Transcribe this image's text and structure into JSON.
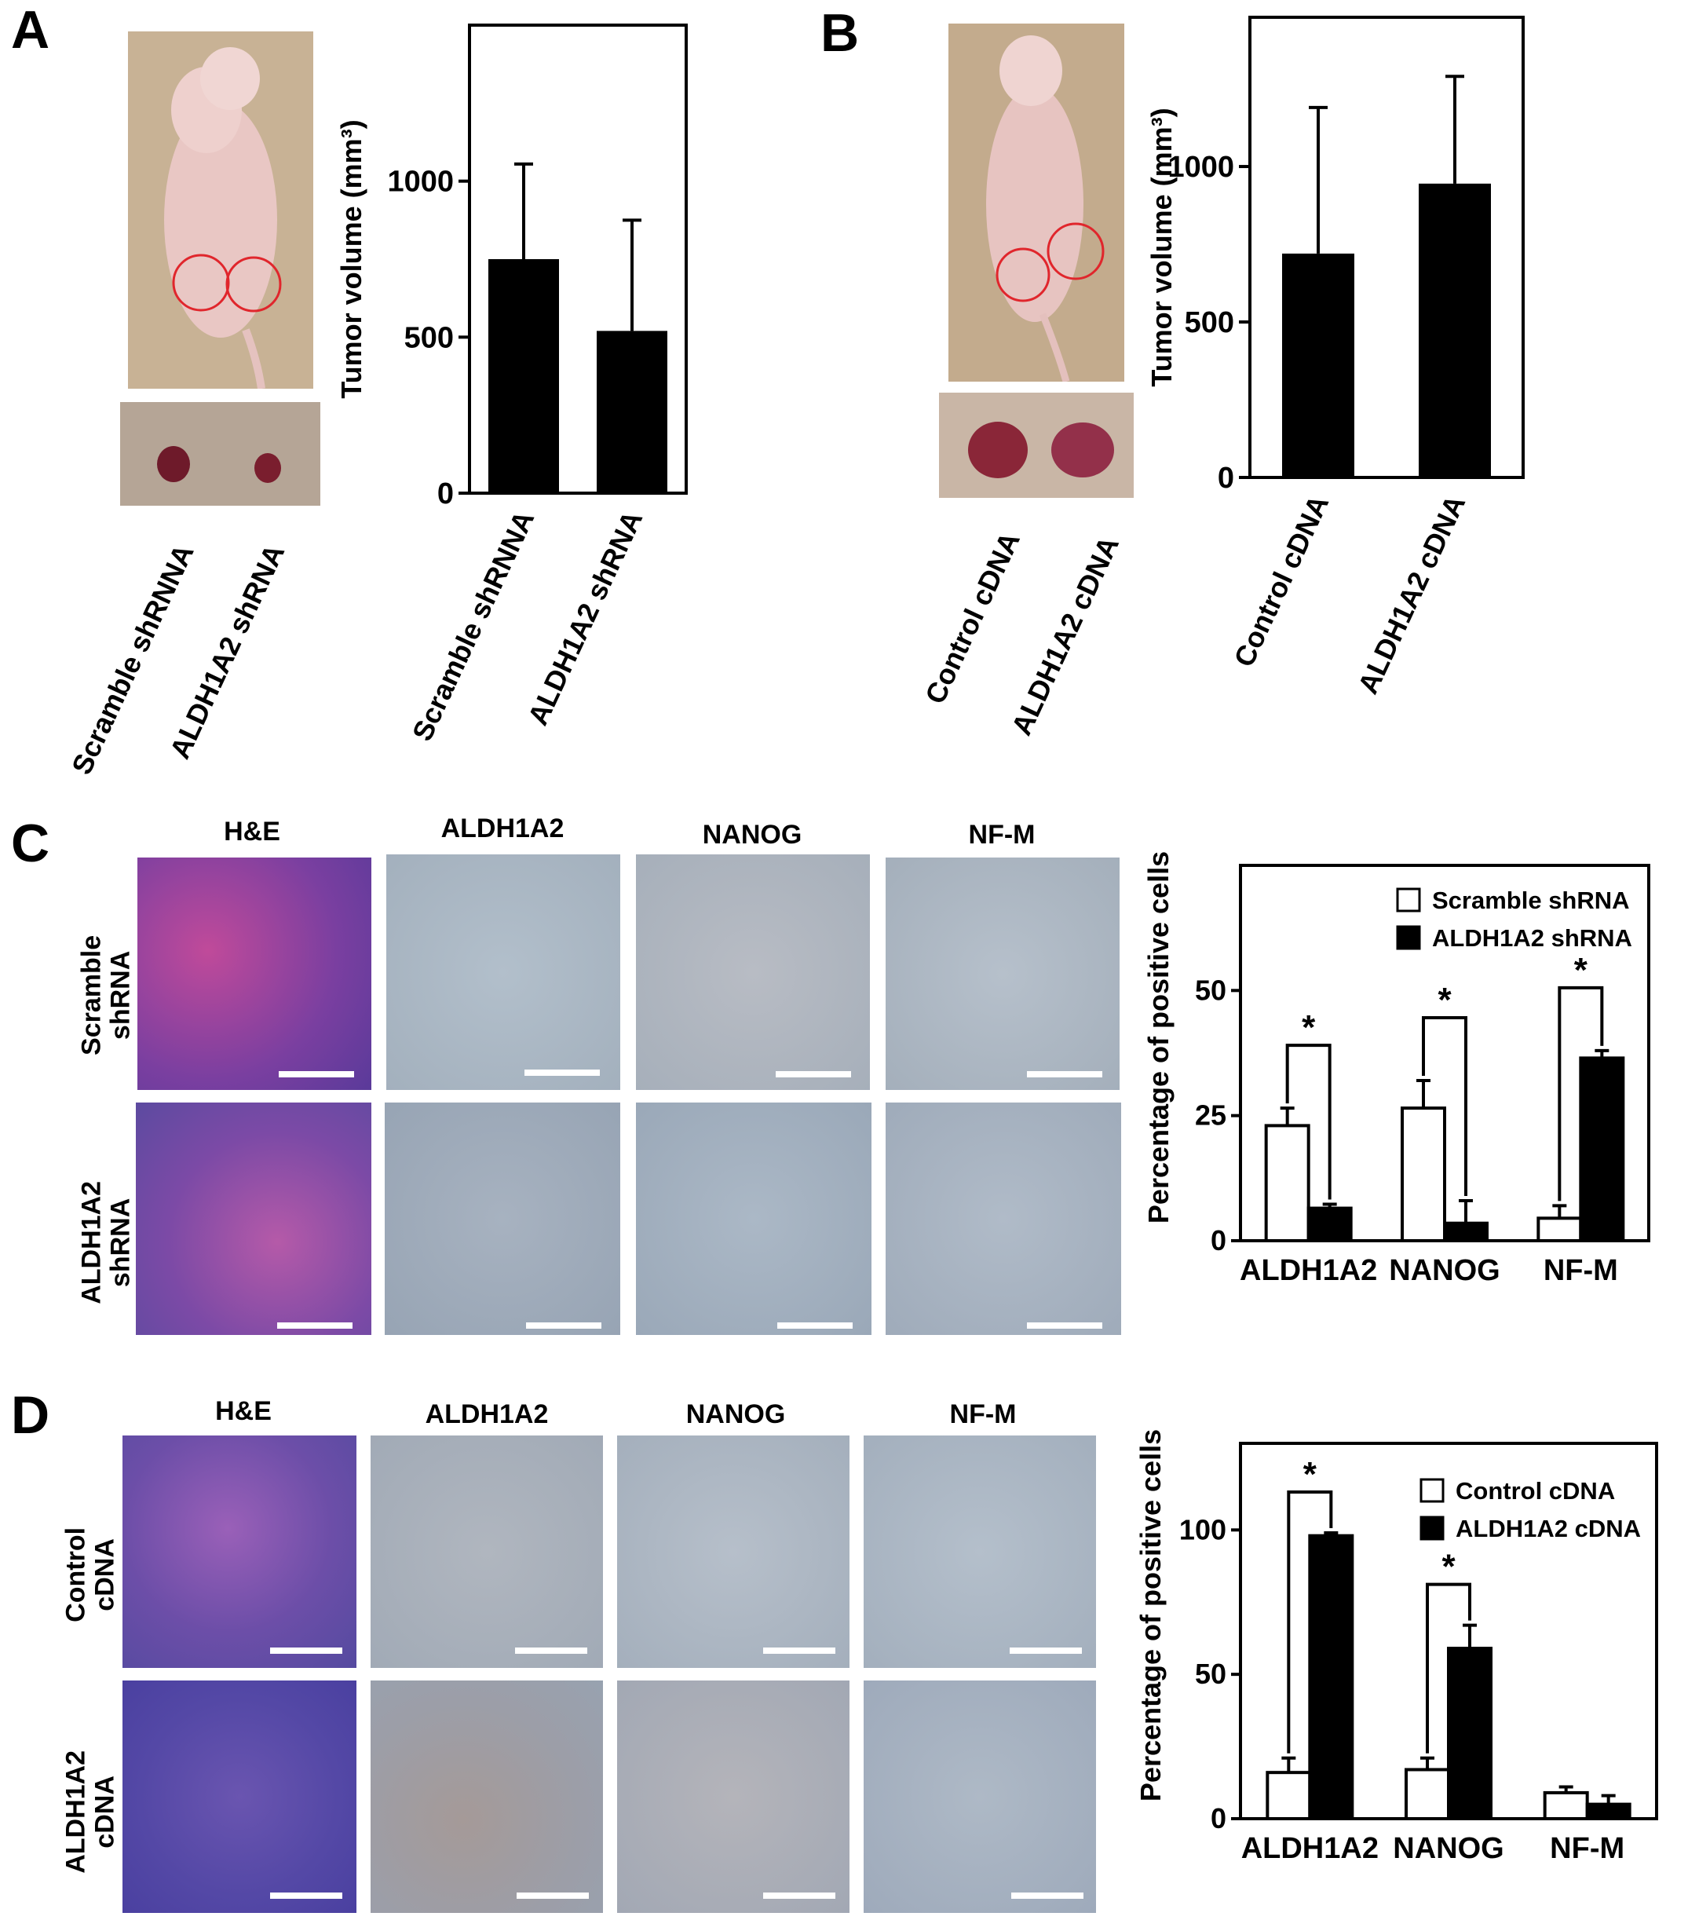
{
  "panels": {
    "A": {
      "letter": "A",
      "photo_labels": [
        "Scramble shRNNA",
        "ALDH1A2 shRNA"
      ]
    },
    "B": {
      "letter": "B",
      "photo_labels": [
        "Control cDNA",
        "ALDH1A2 cDNA"
      ]
    },
    "C": {
      "letter": "C",
      "columns": [
        "H&E",
        "ALDH1A2",
        "NANOG",
        "NF-M"
      ],
      "rows": [
        [
          "Scramble",
          "shRNA"
        ],
        [
          "ALDH1A2",
          "shRNA"
        ]
      ]
    },
    "D": {
      "letter": "D",
      "columns": [
        "H&E",
        "ALDH1A2",
        "NANOG",
        "NF-M"
      ],
      "rows": [
        [
          "Control",
          "cDNA"
        ],
        [
          "ALDH1A2",
          "cDNA"
        ]
      ]
    }
  },
  "colors": {
    "bar_dark": "#000000",
    "bar_light": "#ffffff",
    "circle": "#e0262c",
    "he_stain": "#8a4fa8",
    "ihc_bg": "#a9b6c3",
    "mouse_bg": "#c9b498"
  },
  "chart_data": [
    {
      "id": "A",
      "type": "bar",
      "categories": [
        "Scramble shRNNA",
        "ALDH1A2 shRNA"
      ],
      "values": [
        750,
        520
      ],
      "errors": [
        305,
        355
      ],
      "ylabel": "Tumor volume (mm³)",
      "ylim": [
        0,
        1500
      ],
      "yticks": [
        0,
        500,
        1000
      ]
    },
    {
      "id": "B",
      "type": "bar",
      "categories": [
        "Control cDNA",
        "ALDH1A2 cDNA"
      ],
      "values": [
        720,
        945
      ],
      "errors": [
        470,
        345
      ],
      "ylabel": "Tumor volume (mm³)",
      "ylim": [
        0,
        1480
      ],
      "yticks": [
        0,
        500,
        1000
      ]
    },
    {
      "id": "C",
      "type": "bar",
      "categories": [
        "ALDH1A2",
        "NANOG",
        "NF-M"
      ],
      "series": [
        {
          "name": "Scramble shRNA",
          "values": [
            23,
            26.5,
            4.5
          ],
          "errors": [
            3.5,
            5.5,
            2.5
          ]
        },
        {
          "name": "ALDH1A2 shRNA",
          "values": [
            6.5,
            3.5,
            36.5
          ],
          "errors": [
            0.8,
            4.5,
            1.5
          ]
        }
      ],
      "significance": [
        "*",
        "*",
        "*"
      ],
      "ylabel": "Percentage of positive cells",
      "ylim": [
        0,
        75
      ],
      "yticks": [
        0,
        25,
        50
      ],
      "legend": "top-right"
    },
    {
      "id": "D",
      "type": "bar",
      "categories": [
        "ALDH1A2",
        "NANOG",
        "NF-M"
      ],
      "series": [
        {
          "name": "Control cDNA",
          "values": [
            16,
            17,
            9
          ],
          "errors": [
            5,
            4,
            2
          ]
        },
        {
          "name": "ALDH1A2 cDNA",
          "values": [
            98,
            59,
            5
          ],
          "errors": [
            1,
            8,
            3
          ]
        }
      ],
      "significance": [
        "*",
        "*",
        ""
      ],
      "ylabel": "Percentage of positive cells",
      "ylim": [
        0,
        130
      ],
      "yticks": [
        0,
        50,
        100
      ],
      "legend": "top-right"
    }
  ]
}
